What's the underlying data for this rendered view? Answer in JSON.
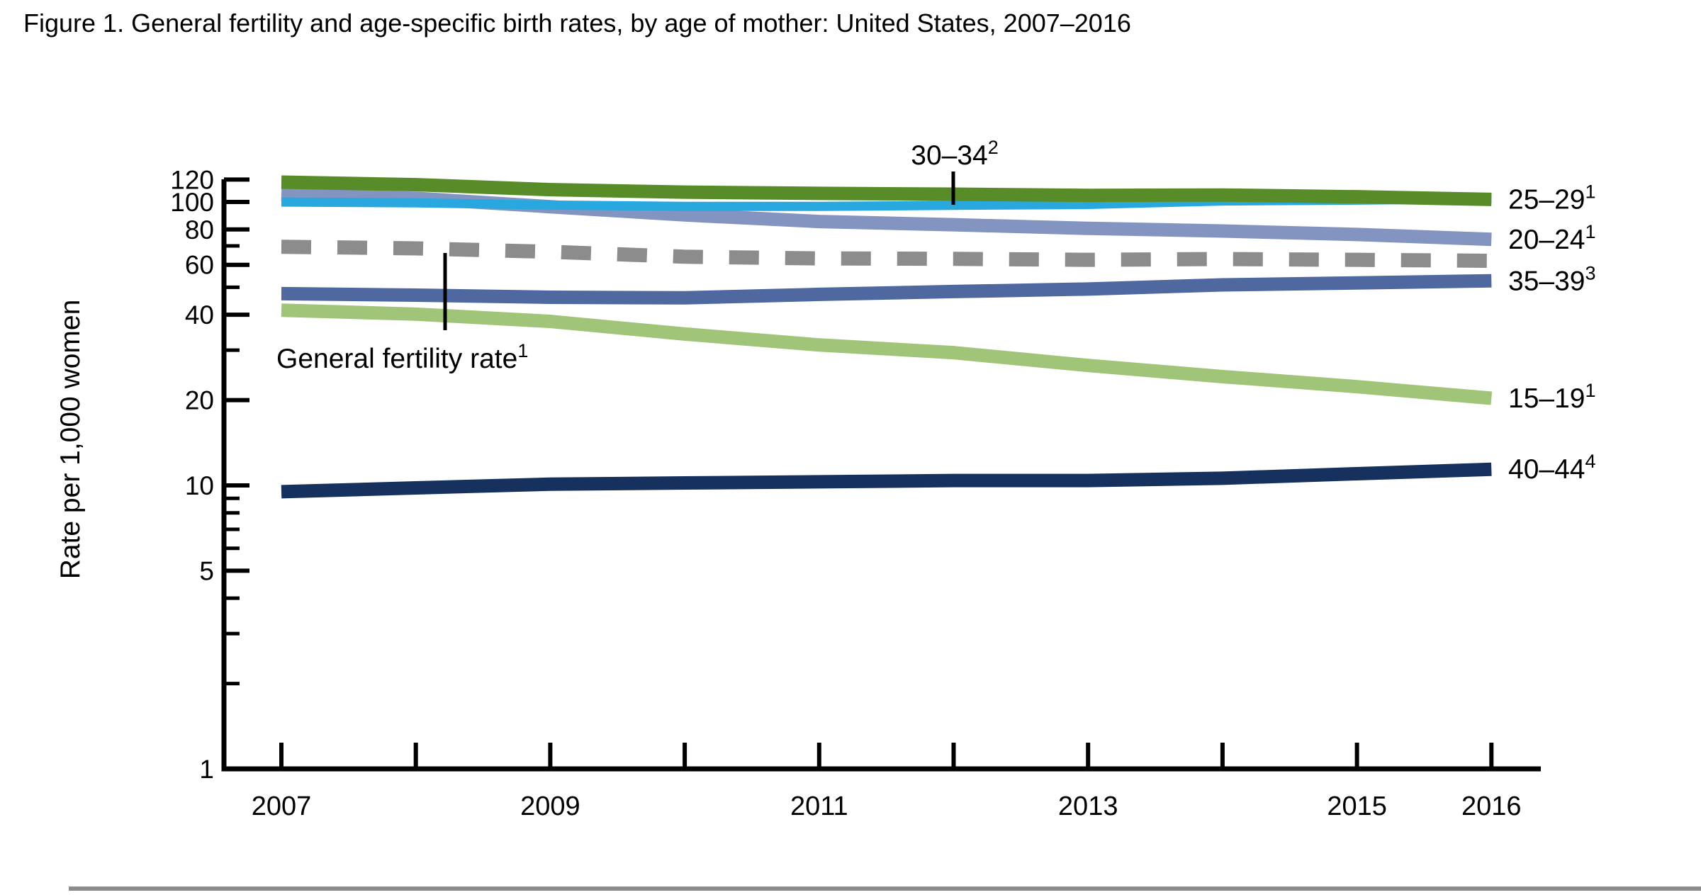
{
  "figure_title": "Figure 1. General fertility and age-specific birth rates, by age of mother: United States, 2007–2016",
  "chart_data": {
    "type": "line",
    "title": "Figure 1. General fertility and age-specific birth rates, by age of mother: United States, 2007–2016",
    "ylabel": "Rate per 1,000 women",
    "yscale": "log",
    "ylim": [
      1,
      120
    ],
    "y_major_ticks": [
      120,
      100,
      80,
      60,
      40,
      20,
      10,
      5,
      1
    ],
    "y_minor_ticks": [
      70,
      50,
      30,
      9,
      8,
      7,
      6,
      4,
      3,
      2
    ],
    "x": [
      2007,
      2008,
      2009,
      2010,
      2011,
      2012,
      2013,
      2014,
      2015,
      2016
    ],
    "x_labeled_ticks": [
      2007,
      2009,
      2011,
      2013,
      2015,
      2016
    ],
    "grid": false,
    "legend_position": "right-edge-labels",
    "series": [
      {
        "key": "20-24",
        "label": "20–24",
        "sup": "1",
        "color": "#8394c1",
        "dashed": false,
        "values": [
          106.3,
          103.0,
          96.2,
          90.0,
          85.3,
          83.1,
          80.7,
          79.0,
          76.8,
          73.8
        ]
      },
      {
        "key": "30-34",
        "label": "30–34",
        "sup": "2",
        "color": "#29a8e0",
        "dashed": false,
        "values": [
          99.9,
          99.3,
          97.5,
          96.5,
          96.5,
          97.3,
          98.0,
          100.8,
          101.5,
          102.7
        ]
      },
      {
        "key": "25-29",
        "label": "25–29",
        "sup": "1",
        "color": "#578c28",
        "dashed": false,
        "values": [
          117.5,
          115.1,
          110.5,
          108.3,
          107.2,
          106.5,
          105.5,
          105.8,
          104.3,
          102.1
        ]
      },
      {
        "key": "gfr",
        "label": "General fertility rate",
        "sup": "1",
        "color": "#8c8c8c",
        "dashed": true,
        "values": [
          69.5,
          68.6,
          66.7,
          64.1,
          63.2,
          63.0,
          62.5,
          62.9,
          62.5,
          62.0
        ]
      },
      {
        "key": "35-39",
        "label": "35–39",
        "sup": "3",
        "color": "#4f68a0",
        "dashed": false,
        "values": [
          47.5,
          46.9,
          46.1,
          45.9,
          47.2,
          48.3,
          49.3,
          51.0,
          51.8,
          52.7
        ]
      },
      {
        "key": "15-19",
        "label": "15–19",
        "sup": "1",
        "color": "#a0c578",
        "dashed": false,
        "values": [
          41.5,
          40.2,
          37.9,
          34.2,
          31.3,
          29.4,
          26.5,
          24.2,
          22.3,
          20.3
        ]
      },
      {
        "key": "40-44",
        "label": "40–44",
        "sup": "4",
        "color": "#17315f",
        "dashed": false,
        "values": [
          9.5,
          9.8,
          10.1,
          10.2,
          10.3,
          10.4,
          10.4,
          10.6,
          11.0,
          11.4
        ]
      }
    ]
  },
  "separator_color": "#8c8c8c"
}
